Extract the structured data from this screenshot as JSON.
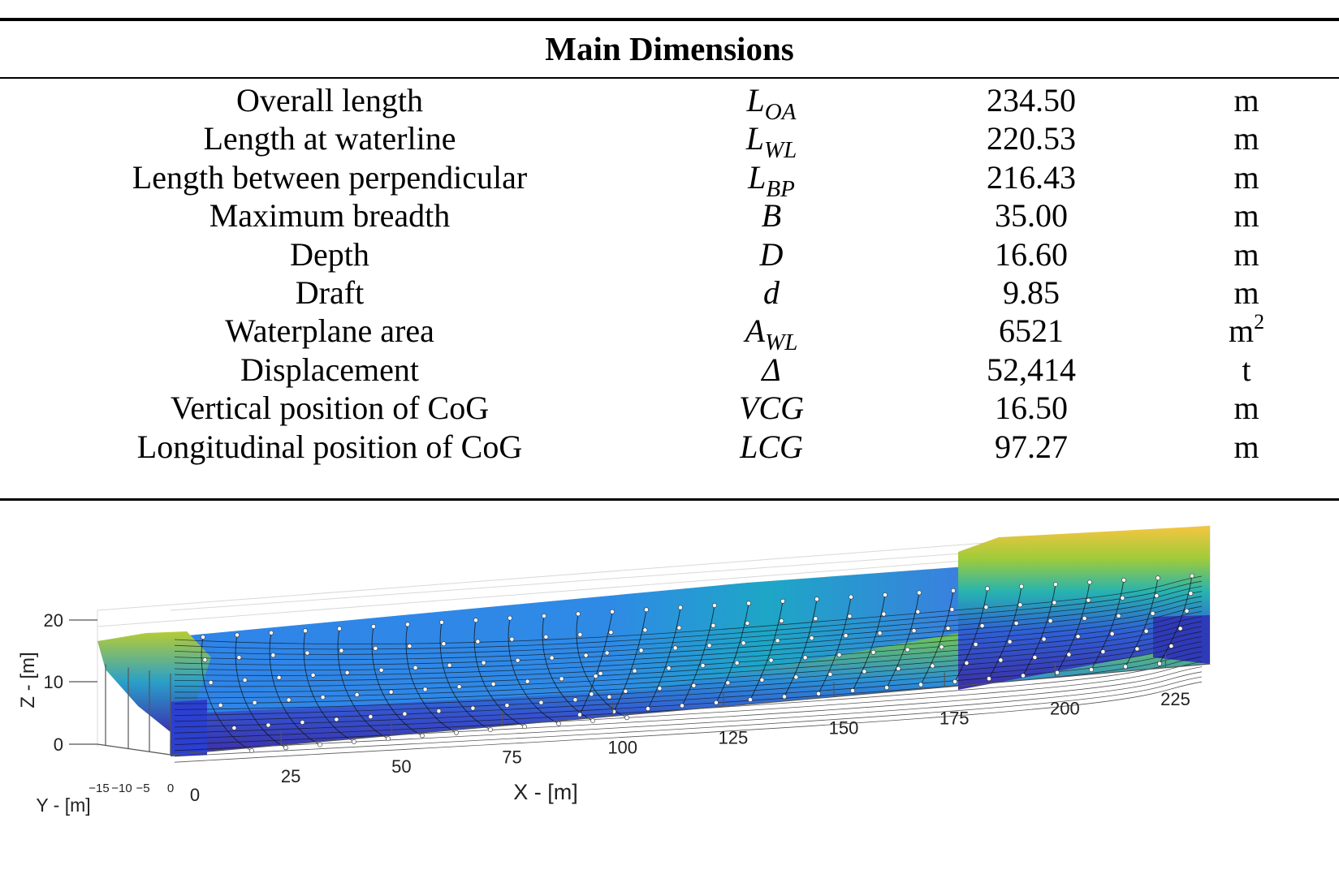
{
  "table": {
    "caption": "Main Dimensions",
    "rows": [
      {
        "name": "Overall length",
        "symbol": "L",
        "subscript": "OA",
        "value": "234.50",
        "unit": "m",
        "unit_sup": ""
      },
      {
        "name": "Length at waterline",
        "symbol": "L",
        "subscript": "WL",
        "value": "220.53",
        "unit": "m",
        "unit_sup": ""
      },
      {
        "name": "Length between perpendicular",
        "symbol": "L",
        "subscript": "BP",
        "value": "216.43",
        "unit": "m",
        "unit_sup": ""
      },
      {
        "name": "Maximum breadth",
        "symbol": "B",
        "subscript": "",
        "value": "35.00",
        "unit": "m",
        "unit_sup": ""
      },
      {
        "name": "Depth",
        "symbol": "D",
        "subscript": "",
        "value": "16.60",
        "unit": "m",
        "unit_sup": ""
      },
      {
        "name": "Draft",
        "symbol": "d",
        "subscript": "",
        "value": "9.85",
        "unit": "m",
        "unit_sup": ""
      },
      {
        "name": "Waterplane area",
        "symbol": "A",
        "subscript": "WL",
        "value": "6521",
        "unit": "m",
        "unit_sup": "2"
      },
      {
        "name": "Displacement",
        "symbol": "Δ",
        "subscript": "",
        "value": "52,414",
        "unit": "t",
        "unit_sup": ""
      },
      {
        "name": "Vertical position of CoG",
        "symbol": "VCG",
        "subscript": "",
        "value": "16.50",
        "unit": "m",
        "unit_sup": ""
      },
      {
        "name": "Longitudinal position of CoG",
        "symbol": "LCG",
        "subscript": "",
        "value": "97.27",
        "unit": "m",
        "unit_sup": ""
      }
    ]
  },
  "figure": {
    "x_axis_label": "X - [m]",
    "y_axis_label": "Y - [m]",
    "z_axis_label": "Z - [m]",
    "x_ticks": [
      "0",
      "25",
      "50",
      "75",
      "100",
      "125",
      "150",
      "175",
      "200",
      "225"
    ],
    "y_ticks": [
      "−15",
      "−10",
      "−5",
      "0"
    ],
    "z_ticks": [
      "0",
      "10",
      "20"
    ],
    "colors": {
      "bottom": "#3b2fa8",
      "mid": "#2f86e6",
      "side": "#1fa6c4",
      "upper": "#7ec24a",
      "top": "#f5c742",
      "station_points": "#ffffff"
    }
  }
}
